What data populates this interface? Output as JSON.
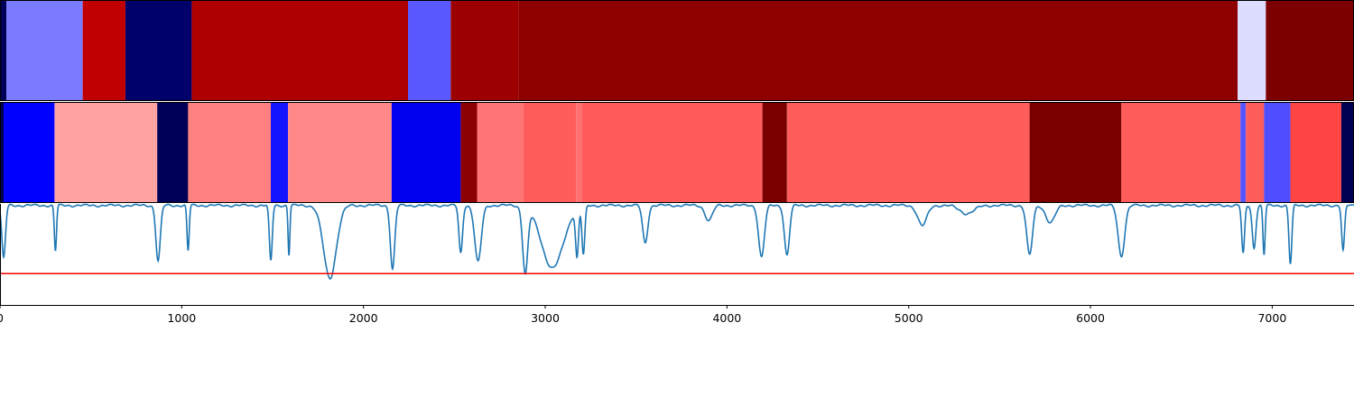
{
  "chart_data": [
    {
      "type": "heatmap",
      "title": "",
      "xlim": [
        0,
        7450
      ],
      "segments": [
        {
          "start": 0,
          "end": 35,
          "color": "#000059"
        },
        {
          "start": 35,
          "end": 455,
          "color": "#7b7bff"
        },
        {
          "start": 455,
          "end": 690,
          "color": "#c00000"
        },
        {
          "start": 690,
          "end": 1055,
          "color": "#00006a"
        },
        {
          "start": 1055,
          "end": 2245,
          "color": "#ae0000"
        },
        {
          "start": 2245,
          "end": 2480,
          "color": "#5959ff"
        },
        {
          "start": 2480,
          "end": 2855,
          "color": "#9c0000"
        },
        {
          "start": 2855,
          "end": 6810,
          "color": "#8e0000"
        },
        {
          "start": 6810,
          "end": 6965,
          "color": "#ddddff"
        },
        {
          "start": 6965,
          "end": 7450,
          "color": "#7d0000"
        }
      ]
    },
    {
      "type": "heatmap",
      "title": "",
      "xlim": [
        0,
        7450
      ],
      "segments": [
        {
          "start": 0,
          "end": 20,
          "color": "#00004f"
        },
        {
          "start": 20,
          "end": 300,
          "color": "#0000ff"
        },
        {
          "start": 300,
          "end": 865,
          "color": "#ffa2a2"
        },
        {
          "start": 865,
          "end": 1035,
          "color": "#000057"
        },
        {
          "start": 1035,
          "end": 1490,
          "color": "#ff8080"
        },
        {
          "start": 1490,
          "end": 1585,
          "color": "#1414ff"
        },
        {
          "start": 1585,
          "end": 2155,
          "color": "#ff8888"
        },
        {
          "start": 2155,
          "end": 2535,
          "color": "#0000ee"
        },
        {
          "start": 2535,
          "end": 2625,
          "color": "#8b0000"
        },
        {
          "start": 2625,
          "end": 2880,
          "color": "#ff7474"
        },
        {
          "start": 2880,
          "end": 3170,
          "color": "#ff5c5c"
        },
        {
          "start": 3170,
          "end": 3200,
          "color": "#ff7070"
        },
        {
          "start": 3200,
          "end": 4195,
          "color": "#ff5b5b"
        },
        {
          "start": 4195,
          "end": 4330,
          "color": "#7a0000"
        },
        {
          "start": 4330,
          "end": 5665,
          "color": "#ff5c5c"
        },
        {
          "start": 5665,
          "end": 6170,
          "color": "#7a0000"
        },
        {
          "start": 6170,
          "end": 6825,
          "color": "#ff5c5c"
        },
        {
          "start": 6825,
          "end": 6855,
          "color": "#5555ff"
        },
        {
          "start": 6855,
          "end": 6955,
          "color": "#ff5c5c"
        },
        {
          "start": 6955,
          "end": 7100,
          "color": "#4e4eff"
        },
        {
          "start": 7100,
          "end": 7380,
          "color": "#ff4444"
        },
        {
          "start": 7380,
          "end": 7450,
          "color": "#000050"
        }
      ]
    },
    {
      "type": "line",
      "title": "",
      "xlabel": "",
      "ylabel": "",
      "xlim": [
        0,
        7450
      ],
      "ylim": [
        0,
        1
      ],
      "xticks": [
        0,
        1000,
        2000,
        3000,
        4000,
        5000,
        6000,
        7000
      ],
      "grid": false,
      "line_color": "#1f77b4",
      "threshold": {
        "value": 0.31,
        "color": "#ff0000"
      },
      "baseline": 0.985,
      "dips": [
        {
          "x": 20,
          "depth": 0.52,
          "width": 10
        },
        {
          "x": 305,
          "depth": 0.45,
          "width": 6
        },
        {
          "x": 870,
          "depth": 0.55,
          "width": 12
        },
        {
          "x": 1035,
          "depth": 0.45,
          "width": 6
        },
        {
          "x": 1490,
          "depth": 0.55,
          "width": 8
        },
        {
          "x": 1590,
          "depth": 0.49,
          "width": 5
        },
        {
          "x": 1815,
          "depth": 0.72,
          "width": 35
        },
        {
          "x": 2160,
          "depth": 0.63,
          "width": 12
        },
        {
          "x": 2535,
          "depth": 0.47,
          "width": 10
        },
        {
          "x": 2630,
          "depth": 0.56,
          "width": 18
        },
        {
          "x": 2890,
          "depth": 0.65,
          "width": 14
        },
        {
          "x": 3040,
          "depth": 0.62,
          "width": 60
        },
        {
          "x": 3175,
          "depth": 0.47,
          "width": 8
        },
        {
          "x": 3210,
          "depth": 0.48,
          "width": 8
        },
        {
          "x": 3550,
          "depth": 0.37,
          "width": 14
        },
        {
          "x": 3900,
          "depth": 0.15,
          "width": 20
        },
        {
          "x": 4190,
          "depth": 0.51,
          "width": 16
        },
        {
          "x": 4330,
          "depth": 0.49,
          "width": 14
        },
        {
          "x": 5075,
          "depth": 0.2,
          "width": 25
        },
        {
          "x": 5320,
          "depth": 0.08,
          "width": 40
        },
        {
          "x": 5665,
          "depth": 0.49,
          "width": 16
        },
        {
          "x": 5780,
          "depth": 0.17,
          "width": 25
        },
        {
          "x": 6170,
          "depth": 0.5,
          "width": 18
        },
        {
          "x": 6840,
          "depth": 0.48,
          "width": 8
        },
        {
          "x": 6900,
          "depth": 0.42,
          "width": 10
        },
        {
          "x": 6955,
          "depth": 0.49,
          "width": 6
        },
        {
          "x": 7100,
          "depth": 0.58,
          "width": 8
        },
        {
          "x": 7390,
          "depth": 0.45,
          "width": 8
        }
      ]
    }
  ]
}
